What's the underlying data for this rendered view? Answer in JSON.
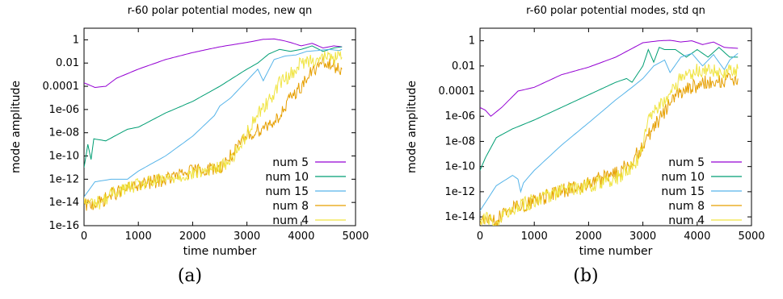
{
  "chart_data": [
    {
      "type": "line",
      "title": "r-60 polar potential modes, new qn",
      "xlabel": "time number",
      "ylabel": "mode amplitude",
      "caption": "(a)",
      "xlim": [
        0,
        5000
      ],
      "ylim": [
        1e-16,
        10
      ],
      "yscale": "log",
      "xticks": [
        "0",
        "1000",
        "2000",
        "3000",
        "4000",
        "5000"
      ],
      "yticks": [
        "1e-16",
        "1e-14",
        "1e-12",
        "1e-10",
        "1e-08",
        "1e-06",
        "0.0001",
        "0.01",
        "1"
      ],
      "legend_position": "lower-right",
      "series": [
        {
          "name": "num 5",
          "color": "#9400d3",
          "noise": 0,
          "x": [
            0,
            200,
            400,
            600,
            1000,
            1500,
            2000,
            2500,
            3000,
            3300,
            3500,
            3650,
            3800,
            4000,
            4200,
            4400,
            4600,
            4750
          ],
          "y": [
            0.0002,
            8e-05,
            0.0001,
            0.0005,
            0.003,
            0.02,
            0.08,
            0.25,
            0.6,
            1.1,
            1.2,
            0.9,
            0.6,
            0.3,
            0.5,
            0.2,
            0.3,
            0.25
          ]
        },
        {
          "name": "num 10",
          "color": "#009e73",
          "noise": 0,
          "x": [
            0,
            70,
            130,
            180,
            400,
            800,
            1000,
            1500,
            2000,
            2500,
            3000,
            3200,
            3400,
            3600,
            3800,
            4000,
            4200,
            4400,
            4600,
            4750
          ],
          "y": [
            1e-11,
            1e-09,
            5e-11,
            3e-09,
            2e-09,
            2e-08,
            3e-08,
            5e-07,
            5e-06,
            0.0001,
            0.003,
            0.01,
            0.06,
            0.15,
            0.1,
            0.15,
            0.3,
            0.1,
            0.2,
            0.25
          ]
        },
        {
          "name": "num 15",
          "color": "#56b4e9",
          "noise": 0,
          "x": [
            0,
            200,
            500,
            800,
            1000,
            1500,
            2000,
            2400,
            2500,
            2700,
            3000,
            3200,
            3300,
            3500,
            3700,
            3900,
            4100,
            4300,
            4500,
            4700,
            4750
          ],
          "y": [
            3e-14,
            6e-13,
            1e-12,
            1e-12,
            5e-12,
            1e-10,
            5e-09,
            3e-07,
            2e-06,
            1e-05,
            0.0003,
            0.003,
            0.0003,
            0.02,
            0.04,
            0.05,
            0.1,
            0.12,
            0.15,
            0.12,
            0.15
          ]
        },
        {
          "name": "num 8",
          "color": "#e69f00",
          "noise": 0.6,
          "x": [
            0,
            300,
            500,
            1000,
            1500,
            2000,
            2500,
            2800,
            3000,
            3300,
            3500,
            3700,
            3800,
            4000,
            4200,
            4400,
            4600,
            4750
          ],
          "y": [
            5e-15,
            1e-14,
            5e-14,
            3e-13,
            1e-12,
            5e-12,
            1e-11,
            3e-10,
            5e-09,
            3e-08,
            1e-07,
            1e-06,
            1e-05,
            0.0001,
            0.002,
            0.01,
            0.005,
            0.003
          ]
        },
        {
          "name": "num 4",
          "color": "#f0e442",
          "noise": 0.6,
          "x": [
            0,
            300,
            600,
            1000,
            1500,
            2000,
            2500,
            2700,
            2900,
            3000,
            3200,
            3400,
            3600,
            3800,
            4000,
            4200,
            4400,
            4600,
            4750
          ],
          "y": [
            1e-14,
            1e-14,
            1e-13,
            3e-13,
            1e-12,
            3e-12,
            1e-11,
            5e-11,
            1e-09,
            1e-08,
            5e-07,
            5e-06,
            0.0002,
            0.001,
            0.01,
            0.02,
            0.03,
            0.03,
            0.03
          ]
        }
      ]
    },
    {
      "type": "line",
      "title": "r-60 polar potential modes, std qn",
      "xlabel": "time number",
      "ylabel": "mode amplitude",
      "caption": "(b)",
      "xlim": [
        0,
        5000
      ],
      "ylim": [
        2e-15,
        10
      ],
      "yscale": "log",
      "xticks": [
        "0",
        "1000",
        "2000",
        "3000",
        "4000",
        "5000"
      ],
      "yticks": [
        "1e-14",
        "1e-12",
        "1e-10",
        "1e-08",
        "1e-06",
        "0.0001",
        "0.01",
        "1"
      ],
      "legend_position": "lower-right",
      "series": [
        {
          "name": "num 5",
          "color": "#9400d3",
          "noise": 0,
          "x": [
            0,
            100,
            200,
            400,
            700,
            1000,
            1500,
            2000,
            2500,
            3000,
            3300,
            3500,
            3700,
            3900,
            4100,
            4300,
            4500,
            4750
          ],
          "y": [
            5e-06,
            3e-06,
            1e-06,
            5e-06,
            0.0001,
            0.0002,
            0.002,
            0.008,
            0.05,
            0.7,
            1.0,
            1.1,
            0.8,
            1.0,
            0.5,
            0.8,
            0.3,
            0.25
          ]
        },
        {
          "name": "num 10",
          "color": "#009e73",
          "noise": 0,
          "x": [
            0,
            100,
            300,
            600,
            1000,
            1500,
            2000,
            2500,
            2700,
            2800,
            3000,
            3100,
            3200,
            3300,
            3400,
            3600,
            3800,
            4000,
            4200,
            4400,
            4600,
            4750
          ],
          "y": [
            5e-11,
            5e-10,
            2e-08,
            1e-07,
            5e-07,
            5e-06,
            5e-05,
            0.0005,
            0.001,
            0.0005,
            0.01,
            0.2,
            0.02,
            0.3,
            0.2,
            0.2,
            0.05,
            0.2,
            0.05,
            0.3,
            0.05,
            0.05
          ]
        },
        {
          "name": "num 15",
          "color": "#56b4e9",
          "noise": 0,
          "x": [
            0,
            300,
            600,
            700,
            750,
            800,
            1000,
            1500,
            2000,
            2500,
            2800,
            3000,
            3200,
            3400,
            3500,
            3700,
            3900,
            4100,
            4300,
            4500,
            4600,
            4750
          ],
          "y": [
            3e-14,
            3e-12,
            2e-11,
            1e-11,
            1e-12,
            5e-12,
            5e-11,
            5e-09,
            3e-07,
            2e-05,
            0.0002,
            0.001,
            0.01,
            0.03,
            0.003,
            0.05,
            0.1,
            0.01,
            0.08,
            0.005,
            0.03,
            0.1
          ]
        },
        {
          "name": "num 8",
          "color": "#e69f00",
          "noise": 0.6,
          "x": [
            0,
            300,
            500,
            1000,
            1500,
            2000,
            2500,
            2700,
            2900,
            3100,
            3300,
            3500,
            3700,
            3900,
            4100,
            4300,
            4500,
            4750
          ],
          "y": [
            5e-15,
            5e-15,
            3e-14,
            2e-13,
            1e-12,
            5e-12,
            3e-11,
            1e-10,
            1e-09,
            3e-08,
            5e-07,
            1e-05,
            0.0001,
            0.0002,
            0.0004,
            0.0006,
            0.0008,
            0.001
          ]
        },
        {
          "name": "num 4",
          "color": "#f0e442",
          "noise": 0.6,
          "x": [
            0,
            300,
            500,
            1000,
            1500,
            2000,
            2500,
            2700,
            2900,
            3000,
            3100,
            3300,
            3500,
            3700,
            3900,
            4100,
            4300,
            4500,
            4750
          ],
          "y": [
            1e-14,
            3e-15,
            3e-14,
            2e-13,
            1e-12,
            3e-12,
            1e-11,
            5e-11,
            3e-10,
            1e-08,
            5e-07,
            5e-06,
            0.0001,
            0.001,
            0.003,
            0.005,
            0.005,
            0.003,
            0.006
          ]
        }
      ]
    }
  ]
}
